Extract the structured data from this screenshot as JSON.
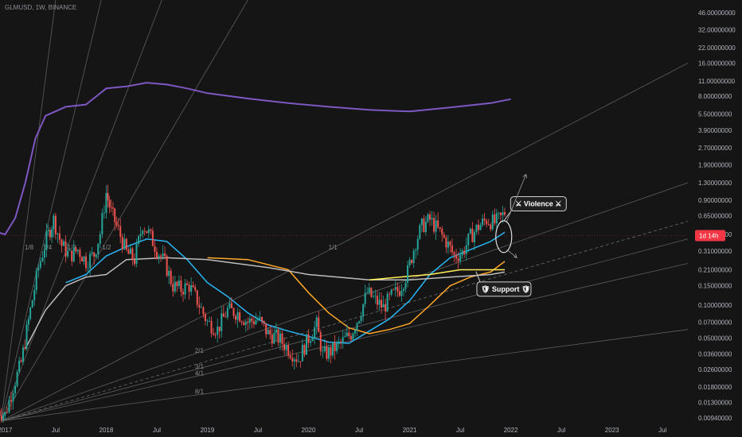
{
  "header": {
    "symbol_line": "GLMUSD, 1W, BINANCE"
  },
  "chart_data": {
    "type": "candlestick",
    "symbol": "GLMUSD",
    "interval": "1W",
    "exchange": "BINANCE",
    "scale": "log",
    "grid": false,
    "price_ticks": [
      "46.00000000",
      "32.00000000",
      "22.00000000",
      "16.00000000",
      "11.00000000",
      "8.00000000",
      "5.50000000",
      "3.90000000",
      "2.70000000",
      "1.90000000",
      "1.30000000",
      "0.90000000",
      "0.65000000",
      "0.44000000",
      "0.31000000",
      "0.21000000",
      "0.15000000",
      "0.10000000",
      "0.07000000",
      "0.05000000",
      "0.03600000",
      "0.02600000",
      "0.01800000",
      "0.01300000",
      "0.00940000"
    ],
    "price_tick_values": [
      46,
      32,
      22,
      16,
      11,
      8,
      5.5,
      3.9,
      2.7,
      1.9,
      1.3,
      0.9,
      0.65,
      0.44,
      0.31,
      0.21,
      0.15,
      0.1,
      0.07,
      0.05,
      0.036,
      0.026,
      0.018,
      0.013,
      0.0094
    ],
    "time_ticks": [
      "2017",
      "Jul",
      "2018",
      "Jul",
      "2019",
      "Jul",
      "2020",
      "Jul",
      "2021",
      "Jul",
      "2022",
      "Jul",
      "2023",
      "Jul"
    ],
    "time_tick_values": [
      2017.0,
      2017.5,
      2018.0,
      2018.5,
      2019.0,
      2019.5,
      2020.0,
      2020.5,
      2021.0,
      2021.5,
      2022.0,
      2022.5,
      2023.0,
      2023.5
    ],
    "x_range": [
      2016.95,
      2023.75
    ],
    "y_range": [
      0.0085,
      60
    ],
    "current_price": {
      "label": "1d 14h",
      "value": 0.43,
      "color": "#f23645"
    },
    "series": [
      {
        "name": "",
        "kind": "price",
        "points": [
          [
            2016.93,
            0.011
          ],
          [
            2017.0,
            0.01
          ],
          [
            2017.08,
            0.018
          ],
          [
            2017.16,
            0.03
          ],
          [
            2017.25,
            0.09
          ],
          [
            2017.33,
            0.22
          ],
          [
            2017.41,
            0.4
          ],
          [
            2017.48,
            0.6
          ],
          [
            2017.56,
            0.35
          ],
          [
            2017.64,
            0.28
          ],
          [
            2017.72,
            0.32
          ],
          [
            2017.8,
            0.25
          ],
          [
            2017.88,
            0.29
          ],
          [
            2017.94,
            0.45
          ],
          [
            2018.0,
            1.05
          ],
          [
            2018.05,
            0.7
          ],
          [
            2018.12,
            0.48
          ],
          [
            2018.2,
            0.3
          ],
          [
            2018.28,
            0.26
          ],
          [
            2018.36,
            0.55
          ],
          [
            2018.42,
            0.45
          ],
          [
            2018.5,
            0.32
          ],
          [
            2018.58,
            0.24
          ],
          [
            2018.66,
            0.15
          ],
          [
            2018.74,
            0.14
          ],
          [
            2018.82,
            0.15
          ],
          [
            2018.9,
            0.11
          ],
          [
            2019.0,
            0.07
          ],
          [
            2019.1,
            0.06
          ],
          [
            2019.2,
            0.09
          ],
          [
            2019.3,
            0.085
          ],
          [
            2019.4,
            0.07
          ],
          [
            2019.5,
            0.075
          ],
          [
            2019.6,
            0.055
          ],
          [
            2019.7,
            0.05
          ],
          [
            2019.8,
            0.04
          ],
          [
            2019.9,
            0.032
          ],
          [
            2020.0,
            0.05
          ],
          [
            2020.08,
            0.066
          ],
          [
            2020.14,
            0.035
          ],
          [
            2020.22,
            0.038
          ],
          [
            2020.32,
            0.045
          ],
          [
            2020.42,
            0.055
          ],
          [
            2020.5,
            0.08
          ],
          [
            2020.58,
            0.13
          ],
          [
            2020.66,
            0.11
          ],
          [
            2020.74,
            0.095
          ],
          [
            2020.82,
            0.12
          ],
          [
            2020.9,
            0.14
          ],
          [
            2020.98,
            0.2
          ],
          [
            2021.06,
            0.38
          ],
          [
            2021.12,
            0.52
          ],
          [
            2021.2,
            0.6
          ],
          [
            2021.28,
            0.48
          ],
          [
            2021.36,
            0.38
          ],
          [
            2021.44,
            0.28
          ],
          [
            2021.52,
            0.3
          ],
          [
            2021.6,
            0.42
          ],
          [
            2021.68,
            0.52
          ],
          [
            2021.76,
            0.6
          ],
          [
            2021.84,
            0.56
          ],
          [
            2021.9,
            0.62
          ],
          [
            2021.94,
            0.7
          ]
        ],
        "color_up": "#26a69a",
        "color_down": "#ef5350"
      },
      {
        "name": "",
        "kind": "ma-purple",
        "color": "#7e57c2",
        "points": [
          [
            2016.93,
            0.46
          ],
          [
            2017.0,
            0.44
          ],
          [
            2017.1,
            0.62
          ],
          [
            2017.2,
            1.3
          ],
          [
            2017.3,
            3.3
          ],
          [
            2017.4,
            5.3
          ],
          [
            2017.6,
            6.4
          ],
          [
            2017.8,
            6.7
          ],
          [
            2018.0,
            9.4
          ],
          [
            2018.2,
            9.8
          ],
          [
            2018.4,
            10.6
          ],
          [
            2018.6,
            10.2
          ],
          [
            2018.8,
            9.4
          ],
          [
            2019.0,
            8.5
          ],
          [
            2019.4,
            7.6
          ],
          [
            2019.8,
            6.9
          ],
          [
            2020.2,
            6.4
          ],
          [
            2020.6,
            6.0
          ],
          [
            2021.0,
            5.8
          ],
          [
            2021.4,
            6.3
          ],
          [
            2021.8,
            6.9
          ],
          [
            2022.0,
            7.5
          ]
        ]
      },
      {
        "name": "",
        "kind": "ma-blue",
        "color": "#29b6f6",
        "points": [
          [
            2017.6,
            0.16
          ],
          [
            2017.8,
            0.19
          ],
          [
            2018.0,
            0.28
          ],
          [
            2018.2,
            0.34
          ],
          [
            2018.4,
            0.4
          ],
          [
            2018.6,
            0.38
          ],
          [
            2018.8,
            0.26
          ],
          [
            2019.0,
            0.16
          ],
          [
            2019.2,
            0.12
          ],
          [
            2019.4,
            0.085
          ],
          [
            2019.6,
            0.066
          ],
          [
            2019.8,
            0.058
          ],
          [
            2020.0,
            0.052
          ],
          [
            2020.2,
            0.046
          ],
          [
            2020.4,
            0.045
          ],
          [
            2020.6,
            0.058
          ],
          [
            2020.8,
            0.075
          ],
          [
            2021.0,
            0.11
          ],
          [
            2021.2,
            0.19
          ],
          [
            2021.4,
            0.27
          ],
          [
            2021.6,
            0.32
          ],
          [
            2021.8,
            0.38
          ],
          [
            2021.94,
            0.46
          ]
        ]
      },
      {
        "name": "",
        "kind": "ma-orange",
        "color": "#ffa726",
        "points": [
          [
            2019.0,
            0.27
          ],
          [
            2019.4,
            0.26
          ],
          [
            2019.8,
            0.21
          ],
          [
            2020.0,
            0.13
          ],
          [
            2020.2,
            0.085
          ],
          [
            2020.4,
            0.062
          ],
          [
            2020.6,
            0.055
          ],
          [
            2020.8,
            0.06
          ],
          [
            2021.0,
            0.068
          ],
          [
            2021.2,
            0.1
          ],
          [
            2021.4,
            0.15
          ],
          [
            2021.6,
            0.18
          ],
          [
            2021.8,
            0.2
          ],
          [
            2021.94,
            0.25
          ]
        ]
      },
      {
        "name": "",
        "kind": "ma-white",
        "color": "#bdbdbd",
        "points": [
          [
            2017.2,
            0.04
          ],
          [
            2017.4,
            0.09
          ],
          [
            2017.6,
            0.15
          ],
          [
            2017.8,
            0.18
          ],
          [
            2018.0,
            0.19
          ],
          [
            2018.2,
            0.26
          ],
          [
            2018.6,
            0.27
          ],
          [
            2019.0,
            0.26
          ],
          [
            2019.6,
            0.22
          ],
          [
            2020.0,
            0.19
          ],
          [
            2020.6,
            0.17
          ],
          [
            2021.0,
            0.17
          ],
          [
            2021.4,
            0.18
          ],
          [
            2021.8,
            0.19
          ],
          [
            2021.94,
            0.2
          ]
        ]
      },
      {
        "name": "",
        "kind": "ma-yellow",
        "color": "#ffee58",
        "points": [
          [
            2020.6,
            0.17
          ],
          [
            2020.9,
            0.18
          ],
          [
            2021.2,
            0.19
          ],
          [
            2021.5,
            0.21
          ],
          [
            2021.8,
            0.21
          ],
          [
            2021.94,
            0.21
          ]
        ]
      }
    ],
    "gann_fan": {
      "origin": [
        2016.96,
        0.0088
      ],
      "lines": [
        {
          "label": "1/8",
          "end": [
            2017.5,
            60
          ]
        },
        {
          "label": "1/4",
          "end": [
            2017.95,
            60
          ]
        },
        {
          "label": "1/3",
          "end": [
            2018.55,
            60
          ]
        },
        {
          "label": "1/2",
          "end": [
            2019.4,
            60
          ]
        },
        {
          "label": "1/1",
          "end": [
            2023.75,
            16
          ]
        },
        {
          "label": "2/1",
          "end": [
            2023.75,
            1.3
          ]
        },
        {
          "label": "3/1",
          "end": [
            2023.75,
            0.4
          ]
        },
        {
          "label": "4/1",
          "end": [
            2023.75,
            0.24
          ]
        },
        {
          "label": "8/1",
          "end": [
            2023.75,
            0.06
          ]
        }
      ],
      "midline_end": [
        2023.75,
        0.58
      ]
    },
    "annotations": [
      {
        "text": "Violence",
        "anchor": [
          2021.95,
          0.85
        ]
      },
      {
        "text": "Support",
        "anchor": [
          2021.68,
          0.14
        ]
      }
    ]
  }
}
